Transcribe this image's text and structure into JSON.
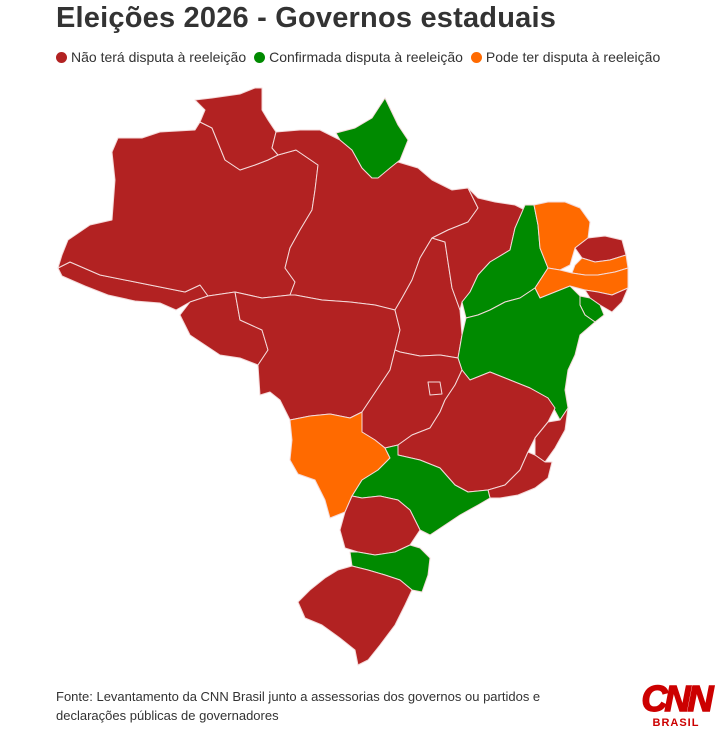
{
  "title": "Eleições 2026 - Governos estaduais",
  "legend": [
    {
      "label": "Não terá disputa à reeleição",
      "color": "#b22222"
    },
    {
      "label": "Confirmada disputa à reeleição",
      "color": "#008a00"
    },
    {
      "label": "Pode ter disputa à reeleição",
      "color": "#ff6a00"
    }
  ],
  "colors": {
    "none": "#b22222",
    "confirmed": "#008a00",
    "maybe": "#ff6a00"
  },
  "states": [
    {
      "name": "AC",
      "status": "none"
    },
    {
      "name": "AM",
      "status": "none"
    },
    {
      "name": "RR",
      "status": "none"
    },
    {
      "name": "AP",
      "status": "confirmed"
    },
    {
      "name": "PA",
      "status": "none"
    },
    {
      "name": "RO",
      "status": "none"
    },
    {
      "name": "MT",
      "status": "none"
    },
    {
      "name": "TO",
      "status": "none"
    },
    {
      "name": "MA",
      "status": "none"
    },
    {
      "name": "PI",
      "status": "confirmed"
    },
    {
      "name": "CE",
      "status": "maybe"
    },
    {
      "name": "RN",
      "status": "none"
    },
    {
      "name": "PB",
      "status": "maybe"
    },
    {
      "name": "PE",
      "status": "maybe"
    },
    {
      "name": "AL",
      "status": "none"
    },
    {
      "name": "SE",
      "status": "confirmed"
    },
    {
      "name": "BA",
      "status": "confirmed"
    },
    {
      "name": "GO",
      "status": "none"
    },
    {
      "name": "DF",
      "status": "none"
    },
    {
      "name": "MG",
      "status": "none"
    },
    {
      "name": "ES",
      "status": "none"
    },
    {
      "name": "RJ",
      "status": "none"
    },
    {
      "name": "MS",
      "status": "maybe"
    },
    {
      "name": "SP",
      "status": "confirmed"
    },
    {
      "name": "PR",
      "status": "none"
    },
    {
      "name": "SC",
      "status": "confirmed"
    },
    {
      "name": "RS",
      "status": "none"
    }
  ],
  "source": [
    "Fonte: Levantamento da CNN Brasil junto a assessorias dos governos ou partidos e",
    "declarações públicas de governadores"
  ],
  "logo": {
    "main": "CNN",
    "sub": "BRASIL"
  }
}
